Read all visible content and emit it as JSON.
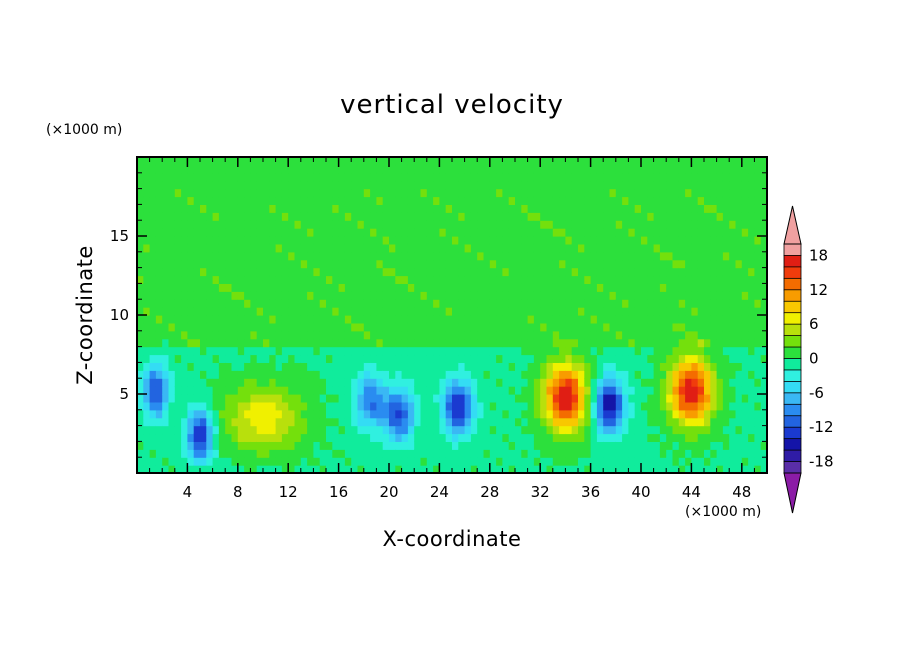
{
  "chart_data": {
    "type": "heatmap",
    "title": "vertical velocity",
    "xlabel": "X-coordinate",
    "ylabel": "Z-coordinate",
    "x_unit": "(×1000 m)",
    "y_unit": "(×1000 m)",
    "xlim": [
      0,
      50
    ],
    "ylim": [
      0,
      20
    ],
    "x_ticks": [
      4,
      8,
      12,
      16,
      20,
      24,
      28,
      32,
      36,
      40,
      44,
      48
    ],
    "y_ticks": [
      5,
      10,
      15
    ],
    "colorbar": {
      "ticks": [
        18,
        12,
        6,
        0,
        -6,
        -12,
        -18
      ],
      "levels": [
        -20,
        -18,
        -16,
        -14,
        -12,
        -10,
        -8,
        -6,
        -4,
        -2,
        0,
        2,
        4,
        6,
        8,
        10,
        12,
        14,
        16,
        18,
        20
      ],
      "colors": [
        "#8b1ca6",
        "#5a2ea8",
        "#2f1ca6",
        "#1414a8",
        "#1a3ad0",
        "#2264e0",
        "#2a8cf0",
        "#3ab8f4",
        "#34dcf4",
        "#30f0e0",
        "#10ec9c",
        "#2ce03c",
        "#74e00c",
        "#b8e00c",
        "#f0f000",
        "#f8c800",
        "#f89c00",
        "#f46c00",
        "#f03c0c",
        "#e01e14",
        "#f0a0a0"
      ]
    },
    "features": [
      {
        "kind": "downdraft",
        "x": 1.5,
        "z": 5.2,
        "w_min": -10
      },
      {
        "kind": "downdraft",
        "x": 5.0,
        "z": 2.4,
        "w_min": -12
      },
      {
        "kind": "updraft",
        "x": 10.0,
        "z": 3.5,
        "w_max": 6
      },
      {
        "kind": "downdraft",
        "x": 18.5,
        "z": 4.6,
        "w_min": -8
      },
      {
        "kind": "downdraft",
        "x": 20.8,
        "z": 3.7,
        "w_min": -10
      },
      {
        "kind": "downdraft",
        "x": 25.5,
        "z": 4.2,
        "w_min": -12
      },
      {
        "kind": "updraft",
        "x": 34.0,
        "z": 4.8,
        "w_max": 16
      },
      {
        "kind": "downdraft",
        "x": 37.5,
        "z": 4.3,
        "w_min": -14
      },
      {
        "kind": "updraft",
        "x": 44.0,
        "z": 5.2,
        "w_max": 16
      }
    ]
  }
}
